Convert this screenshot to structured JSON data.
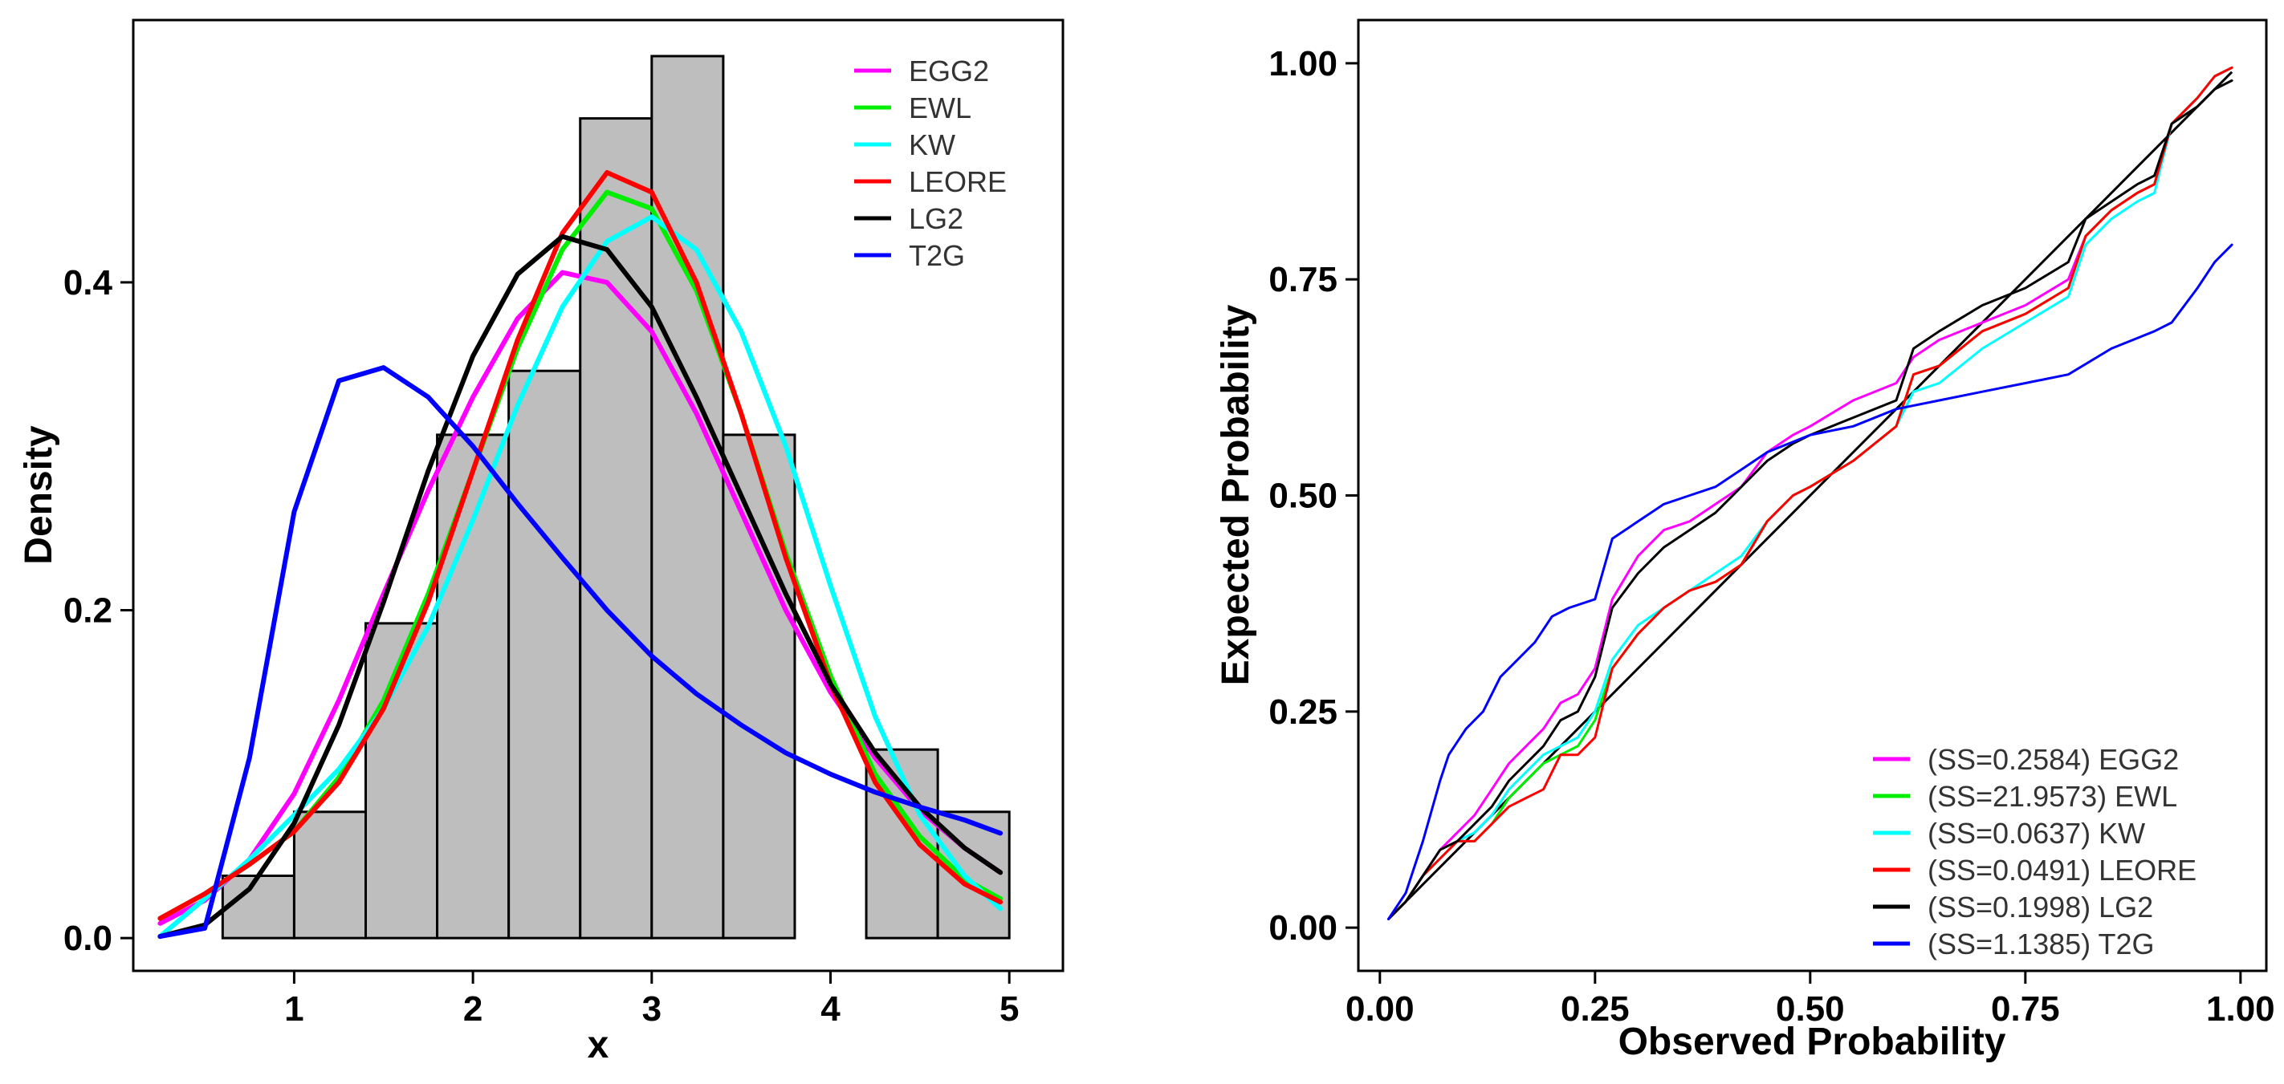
{
  "chart_data": [
    {
      "type": "histogram_with_density",
      "xlabel": "x",
      "ylabel": "Density",
      "xlim": [
        0.1,
        5.3
      ],
      "ylim": [
        -0.02,
        0.56
      ],
      "x_ticks": [
        1,
        2,
        3,
        4,
        5
      ],
      "y_ticks": [
        0.0,
        0.2,
        0.4
      ],
      "legend_position": "top-right",
      "grid": false,
      "histogram": {
        "bin_edges": [
          0.6,
          1.0,
          1.4,
          1.8,
          2.2,
          2.6,
          3.0,
          3.4,
          3.8,
          4.2,
          4.6,
          5.0
        ],
        "heights": [
          0.038,
          0.077,
          0.192,
          0.307,
          0.346,
          0.5,
          0.538,
          0.307,
          0.0,
          0.115,
          0.077
        ]
      },
      "series": [
        {
          "name": "EGG2",
          "color": "#ff00ff",
          "x": [
            0.25,
            0.5,
            0.75,
            1.0,
            1.25,
            1.5,
            1.75,
            2.0,
            2.25,
            2.5,
            2.75,
            3.0,
            3.25,
            3.5,
            3.75,
            4.0,
            4.25,
            4.5,
            4.75,
            4.95
          ],
          "y": [
            0.009,
            0.023,
            0.048,
            0.088,
            0.145,
            0.21,
            0.273,
            0.33,
            0.378,
            0.406,
            0.4,
            0.37,
            0.32,
            0.26,
            0.2,
            0.15,
            0.11,
            0.078,
            0.055,
            0.04
          ]
        },
        {
          "name": "EWL",
          "color": "#00ee00",
          "x": [
            0.25,
            0.5,
            0.75,
            1.0,
            1.25,
            1.5,
            1.75,
            2.0,
            2.25,
            2.5,
            2.75,
            3.0,
            3.25,
            3.5,
            3.75,
            4.0,
            4.25,
            4.5,
            4.75,
            4.95
          ],
          "y": [
            0.012,
            0.027,
            0.045,
            0.065,
            0.098,
            0.145,
            0.21,
            0.285,
            0.36,
            0.42,
            0.455,
            0.445,
            0.395,
            0.32,
            0.235,
            0.16,
            0.1,
            0.062,
            0.036,
            0.024
          ]
        },
        {
          "name": "KW",
          "color": "#00ffff",
          "x": [
            0.25,
            0.5,
            0.75,
            1.0,
            1.25,
            1.5,
            1.75,
            2.0,
            2.25,
            2.5,
            2.75,
            3.0,
            3.25,
            3.5,
            3.75,
            4.0,
            4.25,
            4.5,
            4.75,
            4.95
          ],
          "y": [
            0.001,
            0.024,
            0.048,
            0.075,
            0.103,
            0.14,
            0.19,
            0.255,
            0.325,
            0.385,
            0.425,
            0.44,
            0.42,
            0.37,
            0.3,
            0.215,
            0.135,
            0.075,
            0.038,
            0.018
          ]
        },
        {
          "name": "LEORE",
          "color": "#ff0000",
          "x": [
            0.25,
            0.5,
            0.75,
            1.0,
            1.25,
            1.5,
            1.75,
            2.0,
            2.25,
            2.5,
            2.75,
            3.0,
            3.25,
            3.5,
            3.75,
            4.0,
            4.25,
            4.5,
            4.75,
            4.95
          ],
          "y": [
            0.012,
            0.027,
            0.045,
            0.065,
            0.095,
            0.14,
            0.205,
            0.285,
            0.365,
            0.43,
            0.467,
            0.455,
            0.4,
            0.32,
            0.232,
            0.155,
            0.095,
            0.057,
            0.033,
            0.022
          ]
        },
        {
          "name": "LG2",
          "color": "#000000",
          "x": [
            0.25,
            0.5,
            0.75,
            1.0,
            1.25,
            1.5,
            1.75,
            2.0,
            2.25,
            2.5,
            2.75,
            3.0,
            3.25,
            3.5,
            3.75,
            4.0,
            4.25,
            4.5,
            4.75,
            4.95
          ],
          "y": [
            0.001,
            0.008,
            0.03,
            0.07,
            0.13,
            0.205,
            0.285,
            0.355,
            0.405,
            0.428,
            0.42,
            0.385,
            0.33,
            0.27,
            0.21,
            0.155,
            0.113,
            0.08,
            0.055,
            0.04
          ]
        },
        {
          "name": "T2G",
          "color": "#0000ff",
          "x": [
            0.25,
            0.5,
            0.75,
            1.0,
            1.25,
            1.5,
            1.75,
            2.0,
            2.25,
            2.5,
            2.75,
            3.0,
            3.25,
            3.5,
            3.75,
            4.0,
            4.25,
            4.5,
            4.75,
            4.95
          ],
          "y": [
            0.001,
            0.006,
            0.11,
            0.26,
            0.34,
            0.348,
            0.33,
            0.3,
            0.265,
            0.232,
            0.2,
            0.172,
            0.149,
            0.13,
            0.113,
            0.1,
            0.089,
            0.08,
            0.072,
            0.064
          ]
        }
      ]
    },
    {
      "type": "line",
      "xlabel": "Observed Probability",
      "ylabel": "Expected Probability",
      "xlim": [
        -0.025,
        1.03
      ],
      "ylim": [
        -0.05,
        1.05
      ],
      "x_ticks": [
        "0.00",
        "0.25",
        "0.50",
        "0.75",
        "1.00"
      ],
      "y_ticks": [
        "0.00",
        "0.25",
        "0.50",
        "0.75",
        "1.00"
      ],
      "legend_position": "bottom-right",
      "grid": false,
      "reference_line": {
        "x": [
          0.01,
          0.99
        ],
        "y": [
          0.01,
          0.99
        ],
        "color": "#000000"
      },
      "series": [
        {
          "name": "(SS=0.2584) EGG2",
          "color": "#ff00ff",
          "x": [
            0.01,
            0.03,
            0.05,
            0.07,
            0.09,
            0.11,
            0.13,
            0.15,
            0.17,
            0.19,
            0.21,
            0.23,
            0.25,
            0.27,
            0.3,
            0.33,
            0.36,
            0.39,
            0.42,
            0.45,
            0.48,
            0.5,
            0.55,
            0.6,
            0.62,
            0.65,
            0.7,
            0.75,
            0.8,
            0.82,
            0.85,
            0.88,
            0.9,
            0.92,
            0.95,
            0.97,
            0.99
          ],
          "y": [
            0.01,
            0.03,
            0.06,
            0.09,
            0.11,
            0.13,
            0.16,
            0.19,
            0.21,
            0.23,
            0.26,
            0.27,
            0.3,
            0.38,
            0.43,
            0.46,
            0.47,
            0.49,
            0.51,
            0.55,
            0.57,
            0.58,
            0.61,
            0.63,
            0.66,
            0.68,
            0.7,
            0.72,
            0.75,
            0.8,
            0.83,
            0.85,
            0.86,
            0.93,
            0.96,
            0.985,
            0.995
          ]
        },
        {
          "name": "(SS=21.9573) EWL",
          "color": "#00ee00",
          "x": [
            0.01,
            0.03,
            0.05,
            0.07,
            0.09,
            0.11,
            0.13,
            0.15,
            0.17,
            0.19,
            0.21,
            0.23,
            0.25,
            0.27,
            0.3,
            0.33,
            0.36,
            0.39,
            0.42,
            0.45,
            0.48,
            0.5,
            0.55,
            0.6,
            0.62,
            0.65,
            0.7,
            0.75,
            0.8,
            0.82,
            0.85,
            0.88,
            0.9,
            0.92,
            0.95,
            0.97,
            0.99
          ],
          "y": [
            0.01,
            0.03,
            0.06,
            0.08,
            0.1,
            0.1,
            0.12,
            0.15,
            0.17,
            0.19,
            0.2,
            0.21,
            0.24,
            0.3,
            0.34,
            0.37,
            0.39,
            0.4,
            0.42,
            0.47,
            0.5,
            0.51,
            0.54,
            0.58,
            0.64,
            0.65,
            0.69,
            0.71,
            0.74,
            0.8,
            0.83,
            0.85,
            0.86,
            0.93,
            0.96,
            0.985,
            0.995
          ]
        },
        {
          "name": "(SS=0.0637) KW",
          "color": "#00ffff",
          "x": [
            0.01,
            0.03,
            0.05,
            0.07,
            0.09,
            0.11,
            0.13,
            0.15,
            0.17,
            0.19,
            0.21,
            0.23,
            0.25,
            0.27,
            0.3,
            0.33,
            0.36,
            0.39,
            0.42,
            0.45,
            0.48,
            0.5,
            0.55,
            0.6,
            0.62,
            0.65,
            0.7,
            0.75,
            0.8,
            0.82,
            0.85,
            0.88,
            0.9,
            0.92,
            0.95,
            0.97,
            0.99
          ],
          "y": [
            0.01,
            0.03,
            0.06,
            0.08,
            0.1,
            0.11,
            0.13,
            0.16,
            0.18,
            0.2,
            0.21,
            0.22,
            0.25,
            0.31,
            0.35,
            0.37,
            0.39,
            0.41,
            0.43,
            0.47,
            0.5,
            0.51,
            0.54,
            0.58,
            0.62,
            0.63,
            0.67,
            0.7,
            0.73,
            0.79,
            0.82,
            0.84,
            0.85,
            0.93,
            0.96,
            0.985,
            0.995
          ]
        },
        {
          "name": "(SS=0.0491) LEORE",
          "color": "#ff0000",
          "x": [
            0.01,
            0.03,
            0.05,
            0.07,
            0.09,
            0.11,
            0.13,
            0.15,
            0.17,
            0.19,
            0.21,
            0.23,
            0.25,
            0.27,
            0.3,
            0.33,
            0.36,
            0.39,
            0.42,
            0.45,
            0.48,
            0.5,
            0.55,
            0.6,
            0.62,
            0.65,
            0.7,
            0.75,
            0.8,
            0.82,
            0.85,
            0.88,
            0.9,
            0.92,
            0.95,
            0.97,
            0.99
          ],
          "y": [
            0.01,
            0.03,
            0.06,
            0.08,
            0.1,
            0.1,
            0.12,
            0.14,
            0.15,
            0.16,
            0.2,
            0.2,
            0.22,
            0.3,
            0.34,
            0.37,
            0.39,
            0.4,
            0.42,
            0.47,
            0.5,
            0.51,
            0.54,
            0.58,
            0.64,
            0.65,
            0.69,
            0.71,
            0.74,
            0.8,
            0.83,
            0.85,
            0.86,
            0.93,
            0.96,
            0.985,
            0.995
          ]
        },
        {
          "name": "(SS=0.1998) LG2",
          "color": "#000000",
          "x": [
            0.01,
            0.03,
            0.05,
            0.07,
            0.09,
            0.11,
            0.13,
            0.15,
            0.17,
            0.19,
            0.21,
            0.23,
            0.25,
            0.27,
            0.3,
            0.33,
            0.36,
            0.39,
            0.42,
            0.45,
            0.48,
            0.5,
            0.55,
            0.6,
            0.62,
            0.65,
            0.7,
            0.75,
            0.8,
            0.82,
            0.85,
            0.88,
            0.9,
            0.92,
            0.95,
            0.97,
            0.99
          ],
          "y": [
            0.01,
            0.03,
            0.06,
            0.09,
            0.1,
            0.12,
            0.14,
            0.17,
            0.19,
            0.21,
            0.24,
            0.25,
            0.29,
            0.37,
            0.41,
            0.44,
            0.46,
            0.48,
            0.51,
            0.54,
            0.56,
            0.57,
            0.59,
            0.61,
            0.67,
            0.69,
            0.72,
            0.74,
            0.77,
            0.82,
            0.84,
            0.86,
            0.87,
            0.93,
            0.95,
            0.97,
            0.98
          ]
        },
        {
          "name": "(SS=1.1385) T2G",
          "color": "#0000ff",
          "x": [
            0.01,
            0.03,
            0.05,
            0.07,
            0.08,
            0.1,
            0.12,
            0.14,
            0.16,
            0.18,
            0.2,
            0.22,
            0.25,
            0.27,
            0.3,
            0.33,
            0.36,
            0.39,
            0.42,
            0.45,
            0.5,
            0.55,
            0.6,
            0.65,
            0.7,
            0.75,
            0.8,
            0.85,
            0.9,
            0.92,
            0.95,
            0.97,
            0.99
          ],
          "y": [
            0.01,
            0.04,
            0.1,
            0.17,
            0.2,
            0.23,
            0.25,
            0.29,
            0.31,
            0.33,
            0.36,
            0.37,
            0.38,
            0.45,
            0.47,
            0.49,
            0.5,
            0.51,
            0.53,
            0.55,
            0.57,
            0.58,
            0.6,
            0.61,
            0.62,
            0.63,
            0.64,
            0.67,
            0.69,
            0.7,
            0.74,
            0.77,
            0.79
          ]
        }
      ]
    }
  ]
}
